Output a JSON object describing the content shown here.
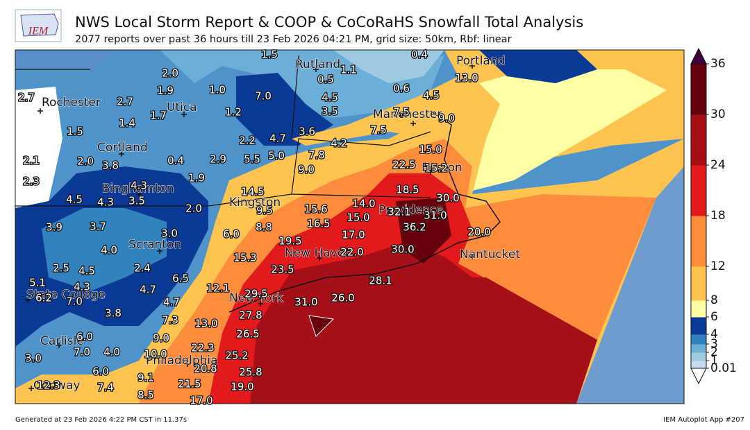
{
  "header": {
    "logo": "IEM",
    "title": "NWS Local Storm Report & COOP & CoCoRaHS Snowfall Total Analysis",
    "subtitle": "2077 reports over past 36 hours till 23 Feb 2026 04:21 PM, grid size: 50km, Rbf: linear"
  },
  "colorbar": {
    "ticks": [
      0.01,
      1,
      2,
      3,
      4,
      6,
      8,
      12,
      18,
      24,
      30,
      36
    ],
    "colors": [
      "#c6dbef",
      "#9ecae1",
      "#6baed6",
      "#3182bd",
      "#0b3a96",
      "#ffffa6",
      "#fec44f",
      "#fd8d3c",
      "#e31a1c",
      "#a50f15",
      "#67000d"
    ],
    "under_color": "#ffffff",
    "over_color": "#3f0040"
  },
  "cities": [
    "Rochester",
    "Utica",
    "Rutland",
    "Portland",
    "Manchester",
    "Cortland",
    "Boston",
    "Binghamton",
    "Kingston",
    "Providence",
    "Scranton",
    "New Haven",
    "Nantucket",
    "State College",
    "New York",
    "Carlisle",
    "Philadelphia",
    "Conway"
  ],
  "reports": [
    "2.7",
    "1.5",
    "2.1",
    "2.3",
    "2.0",
    "1.9",
    "2.7",
    "1.4",
    "1.7",
    "1.0",
    "1.2",
    "7.0",
    "1.5",
    "0.5",
    "1.1",
    "0.4",
    "4.5",
    "3.5",
    "0.6",
    "4.5",
    "13.0",
    "7.5",
    "9.0",
    "7.5",
    "3.6",
    "2.2",
    "4.7",
    "5.0",
    "5.5",
    "4.2",
    "7.8",
    "9.0",
    "15.0",
    "22.5",
    "15.2",
    "2.0",
    "3.8",
    "0.4",
    "2.9",
    "1.9",
    "4.3",
    "4.5",
    "4.3",
    "3.5",
    "2.0",
    "14.5",
    "18.5",
    "30.0",
    "9.5",
    "15.6",
    "14.0",
    "32.1",
    "31.0",
    "16.5",
    "15.0",
    "36.2",
    "20.0",
    "3.9",
    "3.7",
    "3.0",
    "6.0",
    "8.8",
    "17.0",
    "19.5",
    "22.0",
    "30.0",
    "4.0",
    "15.3",
    "2.5",
    "4.5",
    "2.4",
    "23.5",
    "6.5",
    "5.1",
    "4.3",
    "4.7",
    "12.1",
    "28.1",
    "6.2",
    "7.0",
    "4.7",
    "29.5",
    "26.0",
    "31.0",
    "3.8",
    "7.3",
    "27.8",
    "13.0",
    "26.5",
    "6.0",
    "9.0",
    "22.3",
    "7.0",
    "4.0",
    "10.0",
    "25.2",
    "3.0",
    "20.8",
    "25.8",
    "6.0",
    "9.1",
    "21.5",
    "19.0",
    "12.3",
    "7.4",
    "8.5",
    "17.0"
  ],
  "footer": {
    "left": "Generated at 23 Feb 2026 4:22 PM CST in 11.37s",
    "right": "IEM Autoplot App #207"
  }
}
